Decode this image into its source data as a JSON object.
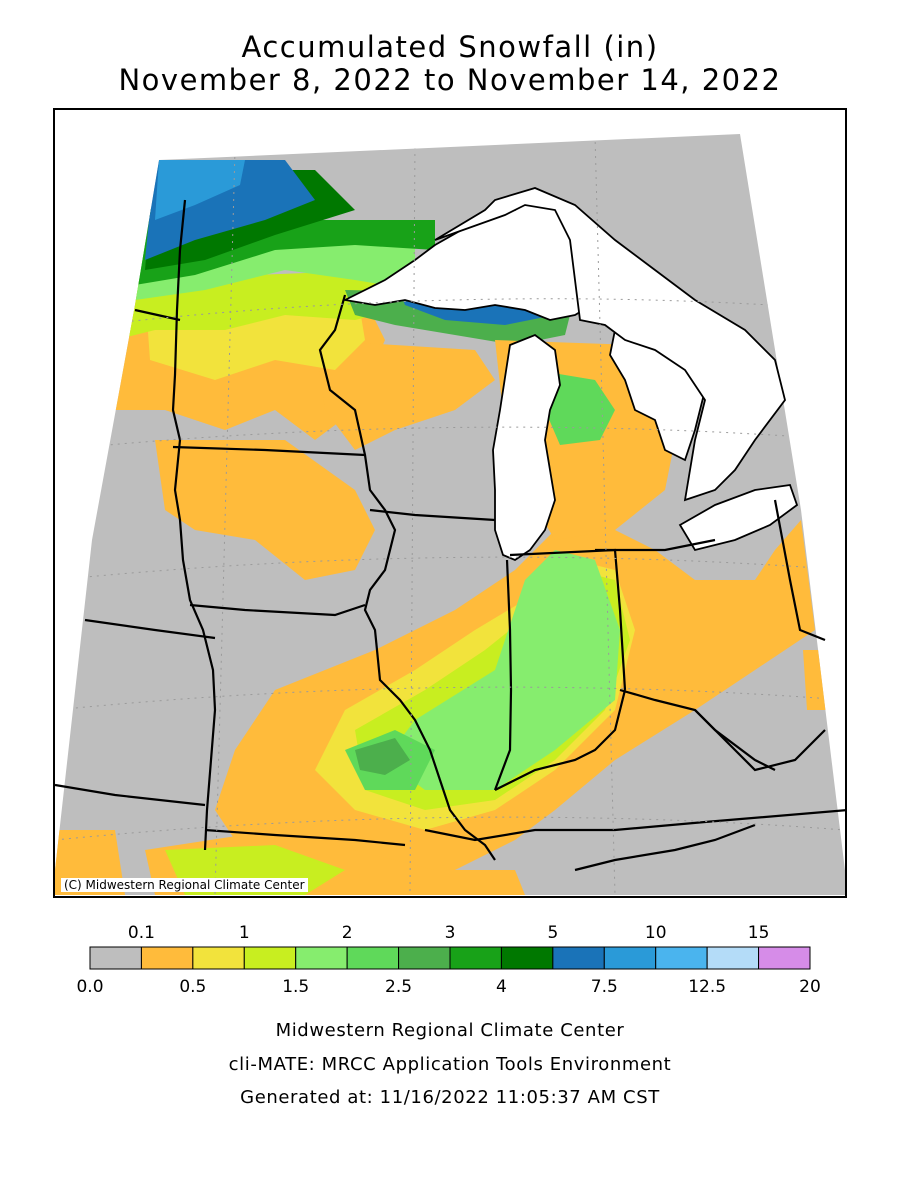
{
  "title": {
    "line1": "Accumulated Snowfall (in)",
    "line2": "November 8, 2022 to November 14, 2022"
  },
  "map": {
    "copyright": "(C) Midwestern Regional Climate Center",
    "colors": {
      "background_none": "#bebebe",
      "lake": "#ffffff",
      "outside": "#ffffff"
    }
  },
  "legend": {
    "top_labels": [
      "0.1",
      "1",
      "2",
      "3",
      "5",
      "10",
      "15"
    ],
    "bottom_labels": [
      "0.0",
      "0.5",
      "1.5",
      "2.5",
      "4",
      "7.5",
      "12.5",
      "20"
    ],
    "bins": [
      {
        "range": "0.0-0.1",
        "color": "#bebebe"
      },
      {
        "range": "0.1-0.5",
        "color": "#ffbb3b"
      },
      {
        "range": "0.5-1",
        "color": "#f2e33c"
      },
      {
        "range": "1-1.5",
        "color": "#c8ee20"
      },
      {
        "range": "1.5-2",
        "color": "#86ed6e"
      },
      {
        "range": "2-2.5",
        "color": "#5fd95a"
      },
      {
        "range": "2.5-3",
        "color": "#4caf4c"
      },
      {
        "range": "3-4",
        "color": "#18a218"
      },
      {
        "range": "4-5",
        "color": "#007800"
      },
      {
        "range": "5-7.5",
        "color": "#1a73b8"
      },
      {
        "range": "7.5-10",
        "color": "#2a9ad8"
      },
      {
        "range": "10-12.5",
        "color": "#4ab4ee"
      },
      {
        "range": "12.5-15",
        "color": "#b4dcf8"
      },
      {
        "range": "15-20",
        "color": "#d68ce8"
      }
    ]
  },
  "footer": {
    "line1": "Midwestern Regional Climate Center",
    "line2": "cli-MATE: MRCC Application Tools Environment",
    "line3": "Generated at: 11/16/2022 11:05:37 AM CST"
  }
}
